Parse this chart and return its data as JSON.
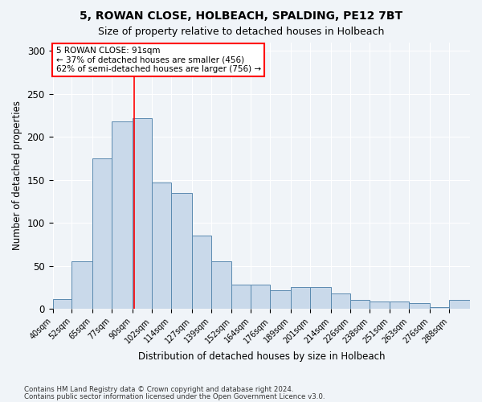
{
  "title": "5, ROWAN CLOSE, HOLBEACH, SPALDING, PE12 7BT",
  "subtitle": "Size of property relative to detached houses in Holbeach",
  "xlabel": "Distribution of detached houses by size in Holbeach",
  "ylabel": "Number of detached properties",
  "bar_values": [
    11,
    55,
    175,
    218,
    222,
    147,
    135,
    85,
    55,
    28,
    28,
    22,
    25,
    25,
    18,
    10,
    8,
    8,
    7,
    2,
    10
  ],
  "bin_edges": [
    40,
    52,
    65,
    77,
    90,
    102,
    114,
    127,
    139,
    152,
    164,
    176,
    189,
    201,
    214,
    226,
    238,
    251,
    263,
    276,
    288,
    301
  ],
  "tick_labels": [
    "40sqm",
    "52sqm",
    "65sqm",
    "77sqm",
    "90sqm",
    "102sqm",
    "114sqm",
    "127sqm",
    "139sqm",
    "152sqm",
    "164sqm",
    "176sqm",
    "189sqm",
    "201sqm",
    "214sqm",
    "226sqm",
    "238sqm",
    "251sqm",
    "263sqm",
    "276sqm",
    "288sqm"
  ],
  "bar_color": "#c9d9ea",
  "bar_edge_color": "#5a8ab0",
  "red_line_x": 91,
  "annotation_title": "5 ROWAN CLOSE: 91sqm",
  "annotation_line1": "← 37% of detached houses are smaller (456)",
  "annotation_line2": "62% of semi-detached houses are larger (756) →",
  "annotation_box_color": "white",
  "annotation_box_edge": "red",
  "ylim": [
    0,
    310
  ],
  "footer1": "Contains HM Land Registry data © Crown copyright and database right 2024.",
  "footer2": "Contains public sector information licensed under the Open Government Licence v3.0.",
  "bg_color": "#f0f4f8",
  "grid_color": "white"
}
